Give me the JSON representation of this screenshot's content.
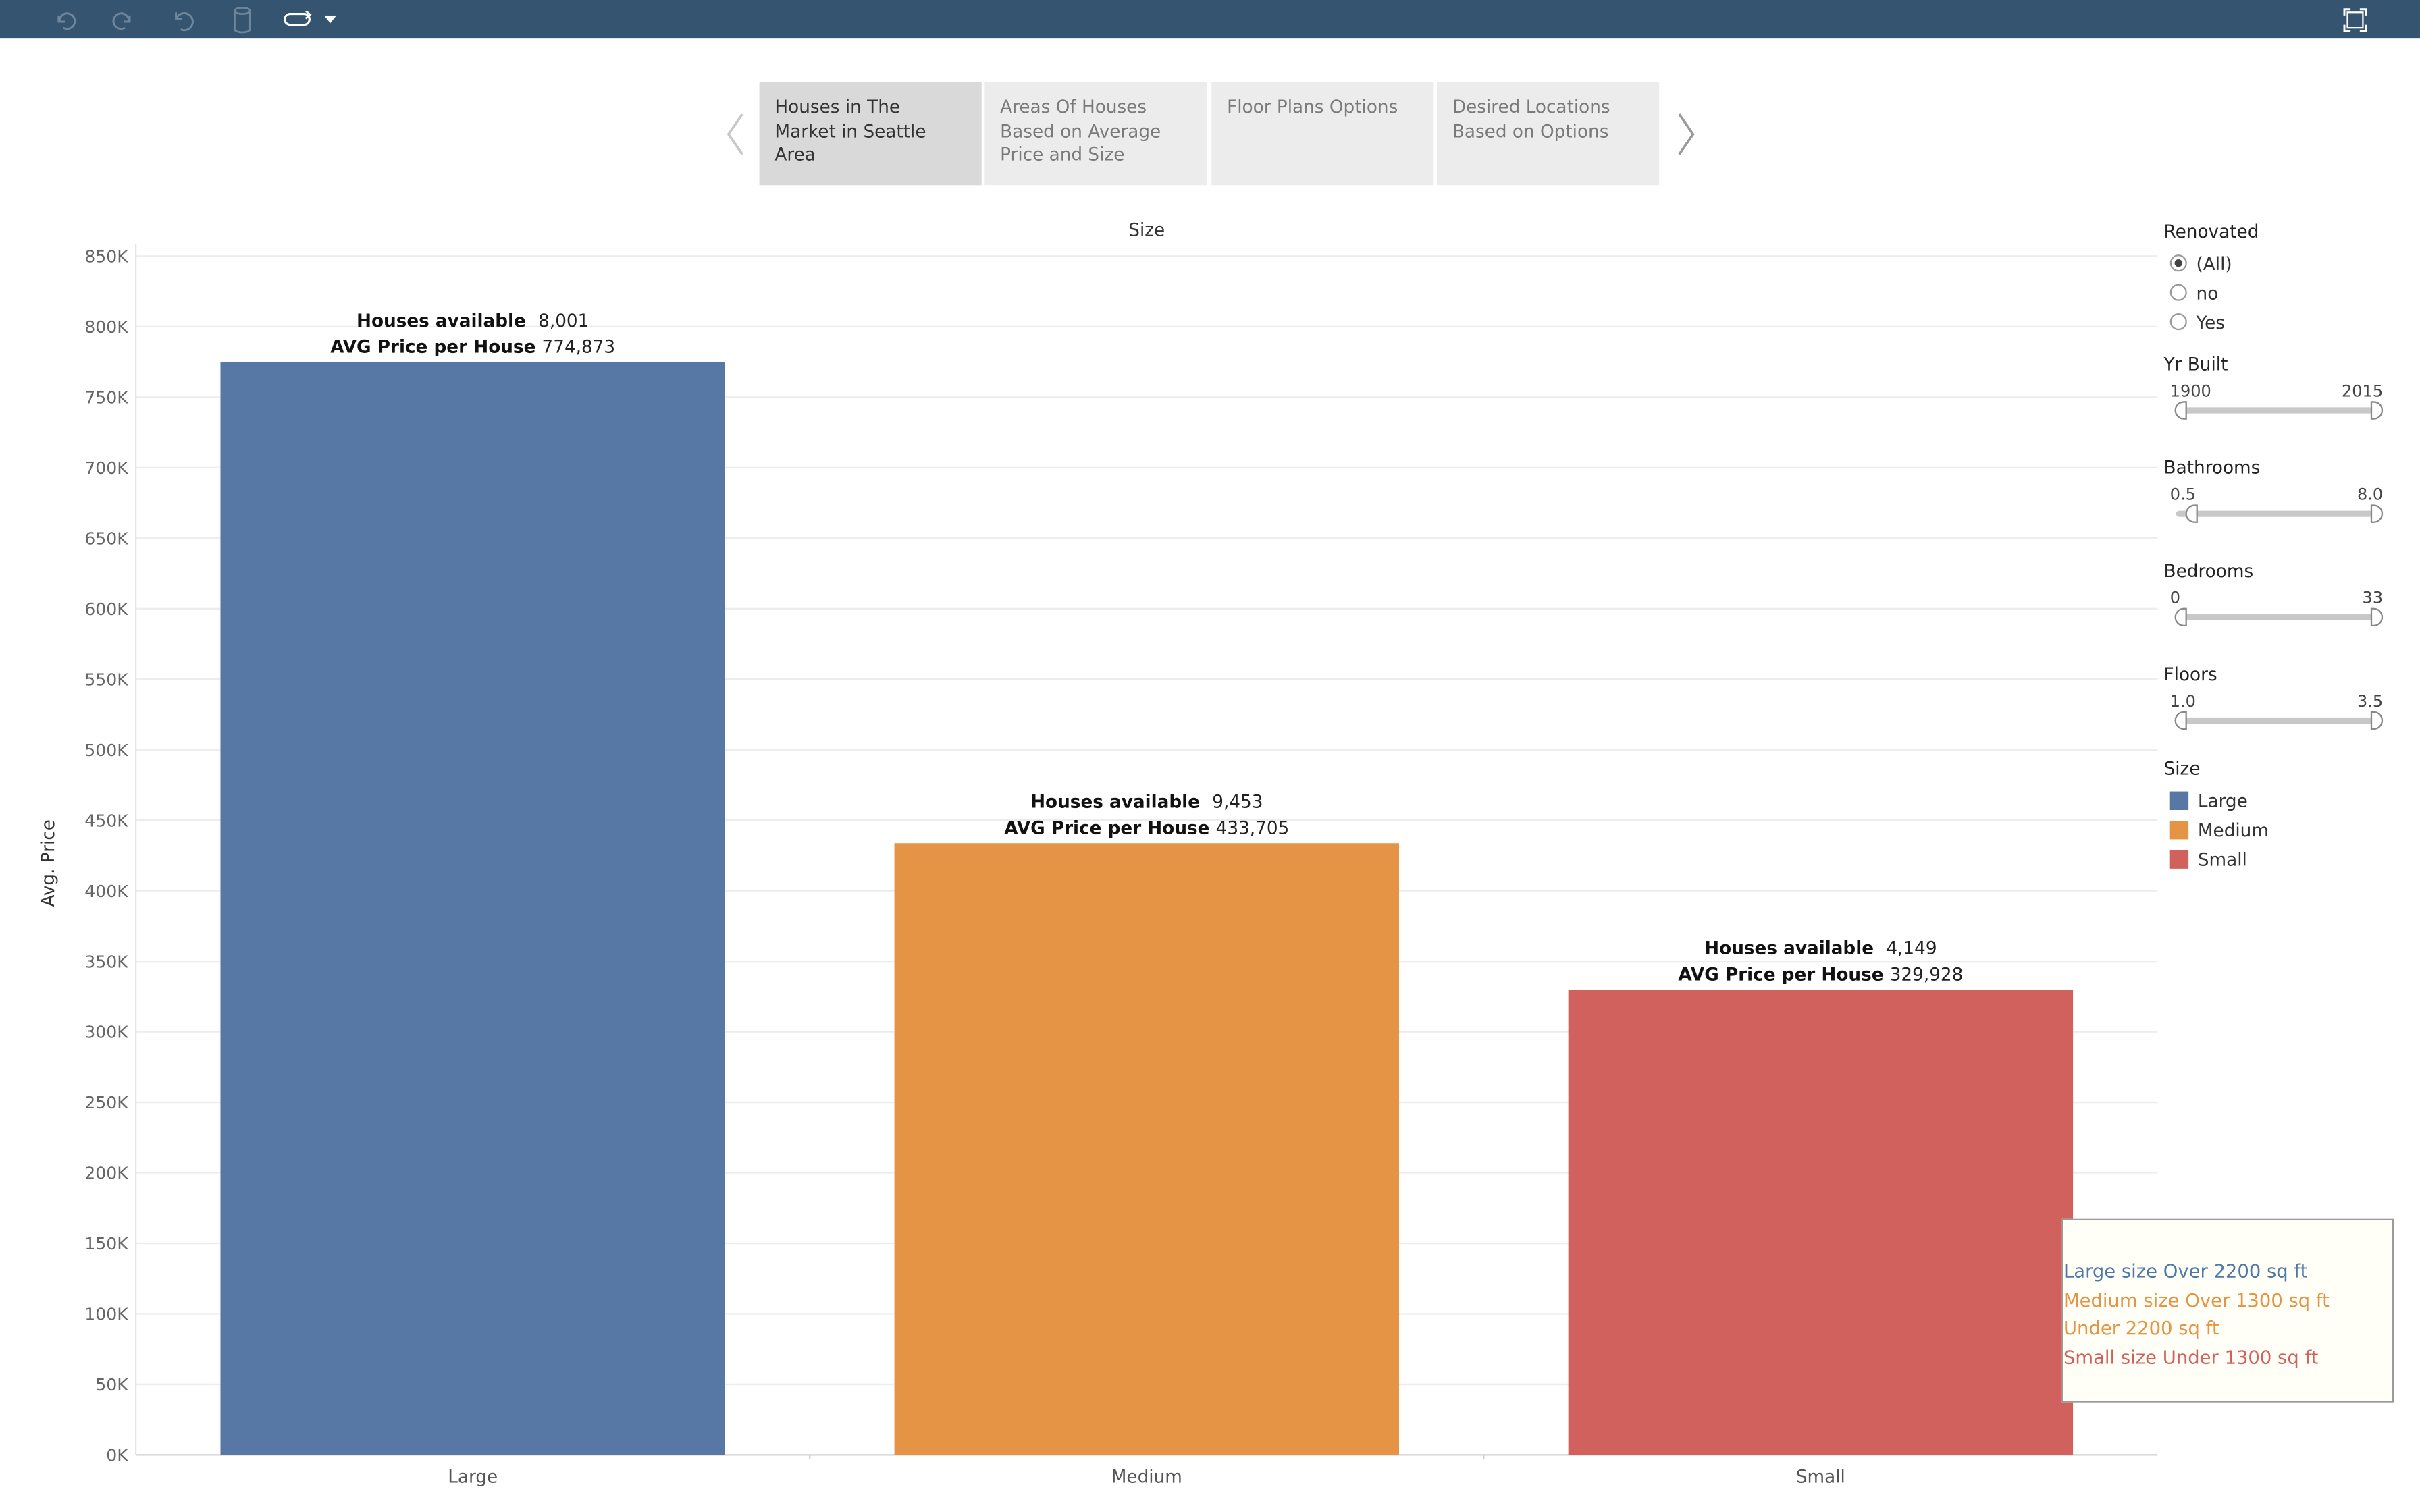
{
  "toolbar": {
    "buttons": [
      {
        "icon": "undo-icon"
      },
      {
        "icon": "redo-icon"
      },
      {
        "icon": "revert-icon"
      },
      {
        "icon": "data-source-icon"
      },
      {
        "icon": "link-icon"
      },
      {
        "icon": "dropdown-caret-icon"
      }
    ],
    "fullscreen_icon": "fullscreen-icon"
  },
  "story": {
    "tabs": [
      {
        "label": "Houses in The Market in Seattle Area",
        "active": true
      },
      {
        "label": "Areas Of Houses Based on Average Price and Size",
        "active": false
      },
      {
        "label": "Floor Plans Options",
        "active": false
      },
      {
        "label": "Desired Locations Based on Options",
        "active": false
      }
    ]
  },
  "chart_data": {
    "type": "bar",
    "title": "Size",
    "xlabel": "",
    "ylabel": "Avg. Price",
    "ylim": [
      0,
      850000
    ],
    "yticks": [
      0,
      50000,
      100000,
      150000,
      200000,
      250000,
      300000,
      350000,
      400000,
      450000,
      500000,
      550000,
      600000,
      650000,
      700000,
      750000,
      800000,
      850000
    ],
    "ytick_labels": [
      "0K",
      "50K",
      "100K",
      "150K",
      "200K",
      "250K",
      "300K",
      "350K",
      "400K",
      "450K",
      "500K",
      "550K",
      "600K",
      "650K",
      "700K",
      "750K",
      "800K",
      "850K"
    ],
    "categories": [
      "Large",
      "Medium",
      "Small"
    ],
    "values": [
      774873,
      433705,
      329928
    ],
    "houses_available": [
      "8,001",
      "9,453",
      "4,149"
    ],
    "avg_price_labels": [
      "774,873",
      "433,705",
      "329,928"
    ],
    "label_houses": "Houses available",
    "label_avg": "AVG Price per House",
    "colors": [
      "#5778a4",
      "#e49444",
      "#d1615d"
    ],
    "grid": true,
    "legend": "right"
  },
  "filters": {
    "renovated": {
      "title": "Renovated",
      "options": [
        {
          "label": "(All)",
          "selected": true
        },
        {
          "label": "no",
          "selected": false
        },
        {
          "label": "Yes",
          "selected": false
        }
      ]
    },
    "sliders": [
      {
        "title": "Yr Built",
        "min": "1900",
        "max": "2015",
        "low": 0,
        "high": 1
      },
      {
        "title": "Bathrooms",
        "min": "0.5",
        "max": "8.0",
        "low": 0.05,
        "high": 1
      },
      {
        "title": "Bedrooms",
        "min": "0",
        "max": "33",
        "low": 0,
        "high": 1
      },
      {
        "title": "Floors",
        "min": "1.0",
        "max": "3.5",
        "low": 0,
        "high": 1
      }
    ],
    "legend": {
      "title": "Size",
      "items": [
        {
          "label": "Large",
          "color": "#5778a4"
        },
        {
          "label": "Medium",
          "color": "#e49444"
        },
        {
          "label": "Small",
          "color": "#d1615d"
        }
      ]
    }
  },
  "annotation": {
    "lines": [
      {
        "text": "Large size Over 2200 sq ft",
        "color": "#4e79a7"
      },
      {
        "text": "Medium size Over 1300 sq ft",
        "color": "#e49444"
      },
      {
        "text": "Under 2200 sq ft",
        "color": "#e49444"
      },
      {
        "text": "Small size Under 1300 sq ft",
        "color": "#d1615d"
      }
    ]
  }
}
